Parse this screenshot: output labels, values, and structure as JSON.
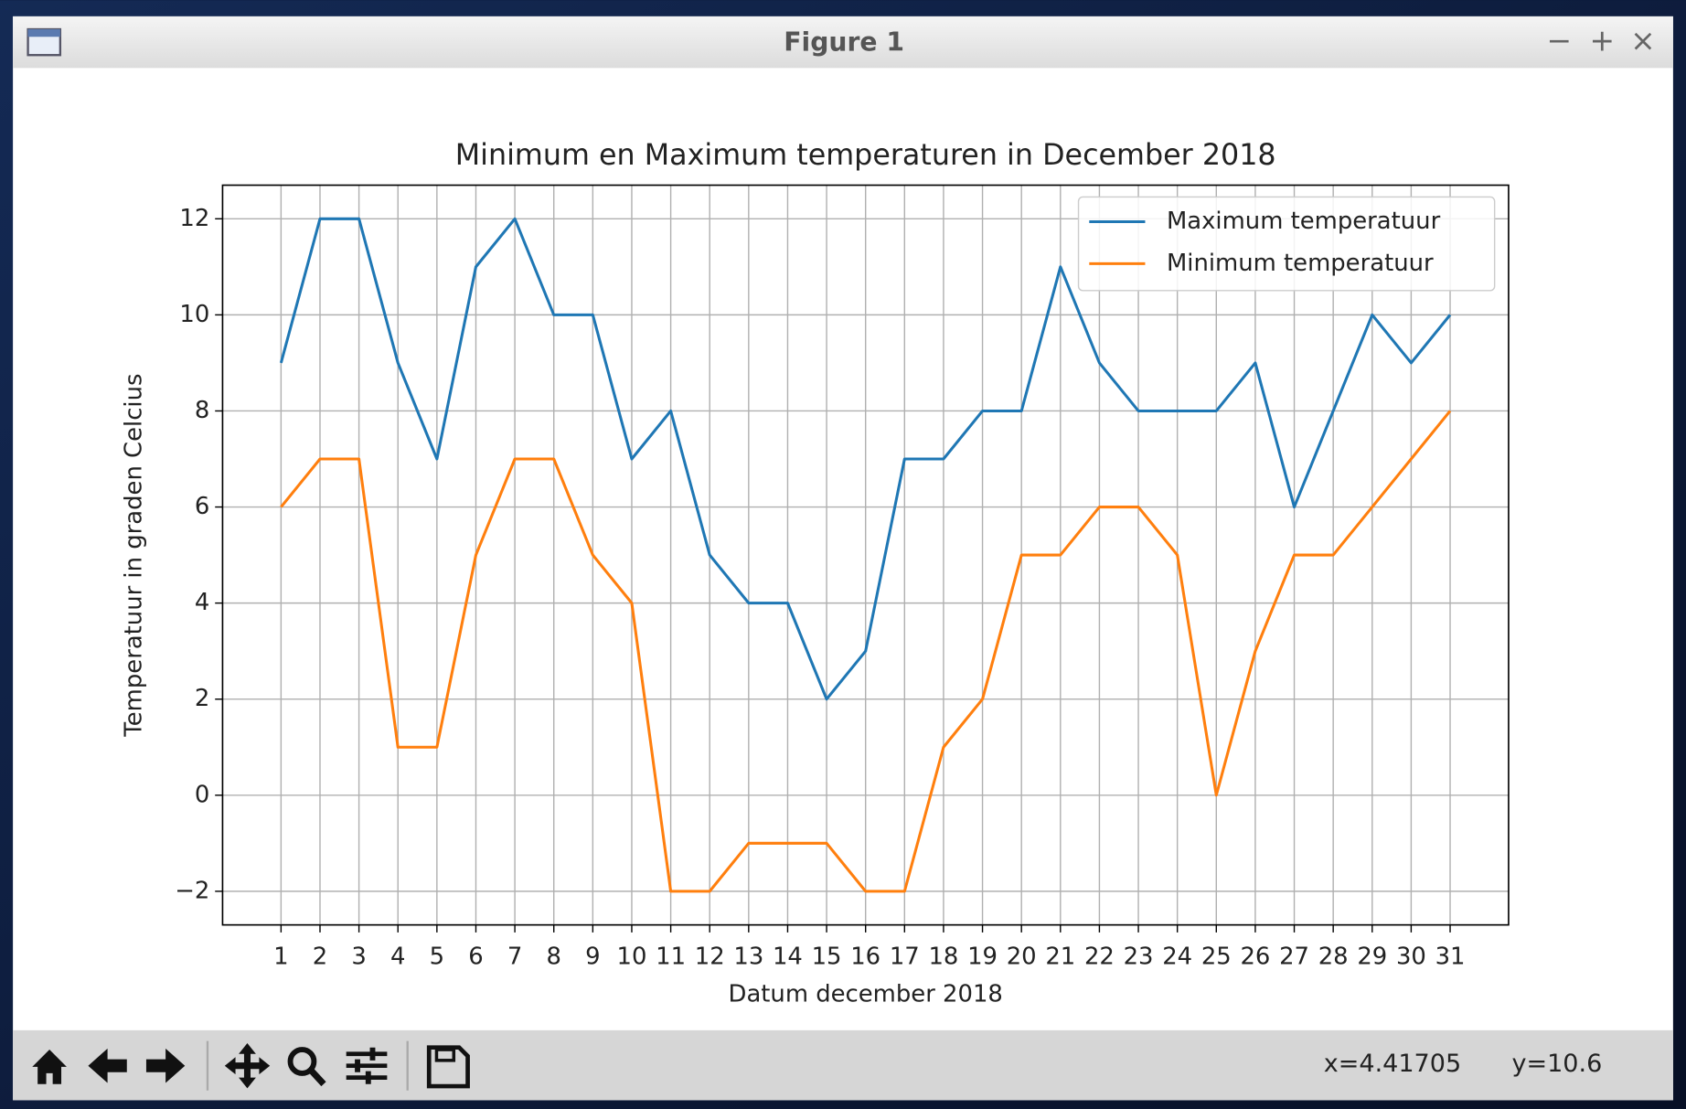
{
  "window": {
    "title": "Figure 1",
    "controls": [
      "−",
      "+",
      "×"
    ]
  },
  "status": {
    "x": "x=4.41705",
    "y": "y=10.6"
  },
  "chart_data": {
    "type": "line",
    "title": "Minimum en Maximum temperaturen in December 2018",
    "xlabel": "Datum december 2018",
    "ylabel": "Temperatuur in graden Celcius",
    "x": [
      1,
      2,
      3,
      4,
      5,
      6,
      7,
      8,
      9,
      10,
      11,
      12,
      13,
      14,
      15,
      16,
      17,
      18,
      19,
      20,
      21,
      22,
      23,
      24,
      25,
      26,
      27,
      28,
      29,
      30,
      31
    ],
    "series": [
      {
        "name": "Maximum temperatuur",
        "color": "#1f77b4",
        "values": [
          9,
          12,
          12,
          9,
          7,
          11,
          12,
          10,
          10,
          7,
          8,
          5,
          4,
          4,
          2,
          3,
          7,
          7,
          8,
          8,
          11,
          9,
          8,
          8,
          8,
          9,
          6,
          8,
          10,
          9,
          10
        ]
      },
      {
        "name": "Minimum temperatuur",
        "color": "#ff7f0e",
        "values": [
          6,
          7,
          7,
          1,
          1,
          5,
          7,
          7,
          5,
          4,
          -2,
          -2,
          -1,
          -1,
          -1,
          -2,
          -2,
          1,
          2,
          5,
          5,
          6,
          6,
          5,
          0,
          3,
          5,
          5,
          6,
          7,
          8
        ]
      }
    ],
    "xlim": [
      -0.5,
      32.5
    ],
    "xticks": [
      1,
      2,
      3,
      4,
      5,
      6,
      7,
      8,
      9,
      10,
      11,
      12,
      13,
      14,
      15,
      16,
      17,
      18,
      19,
      20,
      21,
      22,
      23,
      24,
      25,
      26,
      27,
      28,
      29,
      30,
      31
    ],
    "ylim": [
      -2.7,
      12.7
    ],
    "yticks": [
      {
        "value": -2,
        "label": "−2"
      },
      0,
      2,
      4,
      6,
      8,
      10,
      12
    ],
    "grid": true,
    "legend": "upper right"
  }
}
